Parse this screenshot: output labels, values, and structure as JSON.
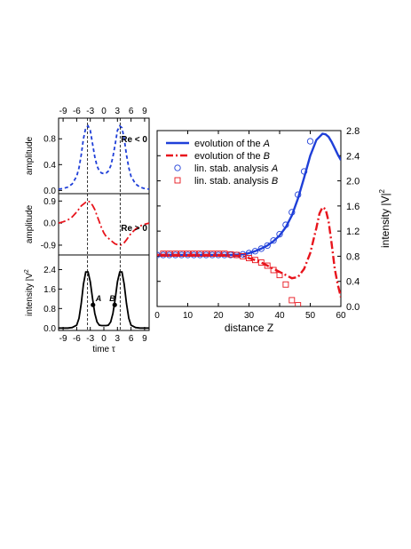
{
  "colors": {
    "blue": "#1f3fd8",
    "red": "#e8141c",
    "black": "#000000"
  },
  "chart_data": [
    {
      "type": "line",
      "panel": "top-left",
      "xlabel_top": "",
      "ylabel": "amplitude",
      "xticks": [
        -9,
        -6,
        -3,
        0,
        3,
        6,
        9
      ],
      "yticks": [
        0.0,
        0.4,
        0.8
      ],
      "xlim": [
        -10,
        10
      ],
      "ylim": [
        -0.05,
        1.12
      ],
      "annotation": "Re < 0",
      "series": [
        {
          "color": "#1f3fd8",
          "style": "dashed",
          "x": [
            -10,
            -9,
            -8,
            -7,
            -6,
            -5.5,
            -5,
            -4.5,
            -4,
            -3.5,
            -3,
            -2.5,
            -2,
            -1.5,
            -1,
            -0.5,
            0,
            0.5,
            1,
            1.5,
            2,
            2.5,
            3,
            3.5,
            4,
            4.5,
            5,
            5.5,
            6,
            7,
            8,
            9,
            10
          ],
          "y": [
            0.02,
            0.03,
            0.05,
            0.1,
            0.22,
            0.35,
            0.55,
            0.8,
            0.97,
            1.0,
            0.93,
            0.72,
            0.52,
            0.38,
            0.3,
            0.27,
            0.26,
            0.27,
            0.3,
            0.38,
            0.52,
            0.72,
            0.93,
            1.0,
            0.97,
            0.8,
            0.55,
            0.35,
            0.22,
            0.1,
            0.05,
            0.03,
            0.02
          ]
        }
      ]
    },
    {
      "type": "line",
      "panel": "middle-left",
      "ylabel": "amplitude",
      "yticks": [
        -0.9,
        0.0,
        0.9
      ],
      "xlim": [
        -10,
        10
      ],
      "ylim": [
        -1.3,
        1.2
      ],
      "annotation": "Re > 0",
      "series": [
        {
          "color": "#e8141c",
          "style": "dash-dot",
          "x": [
            -10,
            -9,
            -8,
            -7,
            -6,
            -5,
            -4,
            -3.5,
            -3,
            -2.5,
            -2,
            -1.5,
            -1,
            -0.5,
            0,
            0.5,
            1,
            1.5,
            2,
            2.5,
            3,
            3.5,
            4,
            4.5,
            5,
            5.5,
            6,
            7,
            8,
            9,
            10
          ],
          "y": [
            0.0,
            0.05,
            0.12,
            0.25,
            0.45,
            0.7,
            0.85,
            0.9,
            0.85,
            0.72,
            0.55,
            0.3,
            0.05,
            -0.2,
            -0.4,
            -0.55,
            -0.62,
            -0.7,
            -0.78,
            -0.85,
            -0.88,
            -0.9,
            -0.88,
            -0.8,
            -0.68,
            -0.55,
            -0.42,
            -0.25,
            -0.12,
            -0.05,
            0.0
          ]
        }
      ]
    },
    {
      "type": "line",
      "panel": "bottom-left",
      "xlabel": "time τ",
      "ylabel": "intensity |V",
      "ylabel_sup": "2",
      "xticks": [
        -9,
        -6,
        -3,
        0,
        3,
        6,
        9
      ],
      "yticks": [
        0.0,
        0.8,
        1.6,
        2.4
      ],
      "xlim": [
        -10,
        10
      ],
      "ylim": [
        -0.1,
        3.0
      ],
      "points": [
        {
          "label": "A",
          "x": -2.4,
          "y": 0.95
        },
        {
          "label": "B",
          "x": 2.4,
          "y": 0.95
        }
      ],
      "series": [
        {
          "color": "#000000",
          "style": "solid",
          "x": [
            -10,
            -9,
            -8,
            -7,
            -6,
            -5.5,
            -5,
            -4.5,
            -4,
            -3.5,
            -3,
            -2.5,
            -2,
            -1.5,
            -1,
            -0.5,
            0,
            0.5,
            1,
            1.5,
            2,
            2.5,
            3,
            3.5,
            4,
            4.5,
            5,
            5.5,
            6,
            7,
            8,
            9,
            10
          ],
          "y": [
            0.0,
            0.0,
            0.0,
            0.02,
            0.12,
            0.4,
            1.0,
            1.8,
            2.3,
            2.3,
            1.9,
            1.2,
            0.6,
            0.25,
            0.12,
            0.1,
            0.1,
            0.1,
            0.12,
            0.25,
            0.6,
            1.2,
            1.9,
            2.3,
            2.3,
            1.8,
            1.0,
            0.4,
            0.12,
            0.02,
            0.0,
            0.0,
            0.0
          ]
        }
      ]
    },
    {
      "type": "line",
      "panel": "right",
      "xlabel": "distance Z",
      "ylabel": "intensity |V|",
      "ylabel_sup": "2",
      "xticks": [
        0,
        10,
        20,
        30,
        40,
        50,
        60
      ],
      "yticks": [
        0.0,
        0.4,
        0.8,
        1.2,
        1.6,
        2.0,
        2.4,
        2.8
      ],
      "xlim": [
        0,
        60
      ],
      "ylim": [
        0,
        2.8
      ],
      "legend": {
        "placement": "top-left",
        "entries": [
          {
            "text": "evolution of the ",
            "italic": "A"
          },
          {
            "text": "evolution of the ",
            "italic": "B"
          },
          {
            "text": "lin. stab. analysis ",
            "italic": "A"
          },
          {
            "text": "lin. stab. analysis ",
            "italic": "B"
          }
        ]
      },
      "series": [
        {
          "id": "evolution-A",
          "color": "#1f3fd8",
          "style": "solid",
          "x": [
            0,
            5,
            10,
            15,
            20,
            25,
            28,
            30,
            32,
            34,
            36,
            38,
            40,
            42,
            44,
            46,
            48,
            50,
            52,
            54,
            55,
            56,
            57,
            58,
            59,
            60
          ],
          "y": [
            0.82,
            0.82,
            0.82,
            0.82,
            0.82,
            0.82,
            0.83,
            0.85,
            0.88,
            0.92,
            0.97,
            1.04,
            1.13,
            1.26,
            1.45,
            1.72,
            2.05,
            2.4,
            2.65,
            2.75,
            2.74,
            2.7,
            2.62,
            2.52,
            2.42,
            2.33
          ]
        },
        {
          "id": "evolution-B",
          "color": "#e8141c",
          "style": "dash-dot",
          "x": [
            0,
            5,
            10,
            15,
            20,
            25,
            28,
            30,
            32,
            34,
            36,
            38,
            40,
            42,
            44,
            46,
            48,
            50,
            52,
            53,
            54,
            55,
            56,
            57,
            58,
            59,
            60
          ],
          "y": [
            0.82,
            0.82,
            0.82,
            0.82,
            0.82,
            0.81,
            0.8,
            0.77,
            0.74,
            0.7,
            0.65,
            0.6,
            0.55,
            0.5,
            0.45,
            0.47,
            0.6,
            0.85,
            1.25,
            1.48,
            1.58,
            1.55,
            1.35,
            1.0,
            0.6,
            0.35,
            0.15
          ]
        },
        {
          "id": "lin-stab-A",
          "color": "#1f3fd8",
          "marker": "circle",
          "x": [
            0,
            2,
            4,
            6,
            8,
            10,
            12,
            14,
            16,
            18,
            20,
            22,
            24,
            26,
            28,
            30,
            32,
            34,
            36,
            38,
            40,
            42,
            44,
            46,
            48,
            50
          ],
          "y": [
            0.82,
            0.82,
            0.82,
            0.82,
            0.82,
            0.82,
            0.82,
            0.82,
            0.82,
            0.82,
            0.82,
            0.82,
            0.82,
            0.82,
            0.83,
            0.85,
            0.88,
            0.92,
            0.97,
            1.05,
            1.15,
            1.3,
            1.5,
            1.78,
            2.15,
            2.63
          ]
        },
        {
          "id": "lin-stab-B",
          "color": "#e8141c",
          "marker": "square",
          "x": [
            2,
            4,
            6,
            8,
            10,
            12,
            14,
            16,
            18,
            20,
            22,
            24,
            26,
            28,
            30,
            32,
            34,
            36,
            38,
            40,
            42,
            44,
            46
          ],
          "y": [
            0.84,
            0.84,
            0.84,
            0.84,
            0.84,
            0.84,
            0.84,
            0.84,
            0.84,
            0.84,
            0.84,
            0.83,
            0.82,
            0.8,
            0.77,
            0.74,
            0.7,
            0.65,
            0.58,
            0.5,
            0.35,
            0.1,
            0.02
          ]
        }
      ]
    }
  ]
}
